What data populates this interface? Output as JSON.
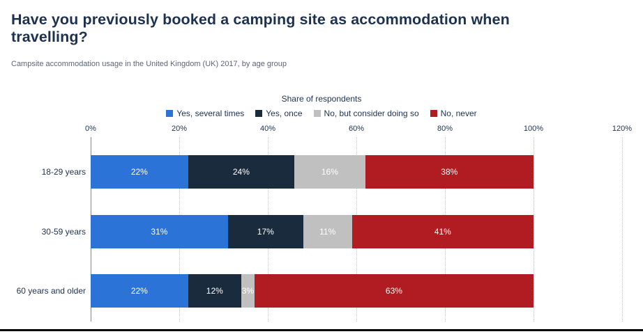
{
  "page": {
    "title": "Have you previously booked a camping site as accommodation when travelling?",
    "subtitle": "Campsite accommodation usage in the United Kingdom (UK) 2017, by age group"
  },
  "chart_data": {
    "type": "bar",
    "orientation": "horizontal",
    "stacked": true,
    "axis_title": "Share of respondents",
    "categories": [
      "18-29 years",
      "30-59 years",
      "60 years and older"
    ],
    "series": [
      {
        "name": "Yes, several times",
        "color": "#2c73d8",
        "values": [
          22,
          31,
          22
        ]
      },
      {
        "name": "Yes, once",
        "color": "#1a2b3d",
        "values": [
          24,
          17,
          12
        ]
      },
      {
        "name": "No, but consider doing so",
        "color": "#c0c0c0",
        "values": [
          16,
          11,
          3
        ]
      },
      {
        "name": "No, never",
        "color": "#b01c22",
        "values": [
          38,
          41,
          63
        ]
      }
    ],
    "x_ticks": [
      0,
      20,
      40,
      60,
      80,
      100,
      120
    ],
    "x_tick_suffix": "%",
    "xlim": [
      0,
      120
    ],
    "value_suffix": "%",
    "grid": "vertical-dotted",
    "legend_position": "top-center"
  },
  "colors": {
    "title_text": "#1d3150",
    "subtitle_text": "#5c6676",
    "axis_line": "#888888",
    "gridline": "#c9c9c9",
    "value_label": "#ffffff",
    "background": "#ffffff",
    "bottom_rule": "#000000"
  }
}
